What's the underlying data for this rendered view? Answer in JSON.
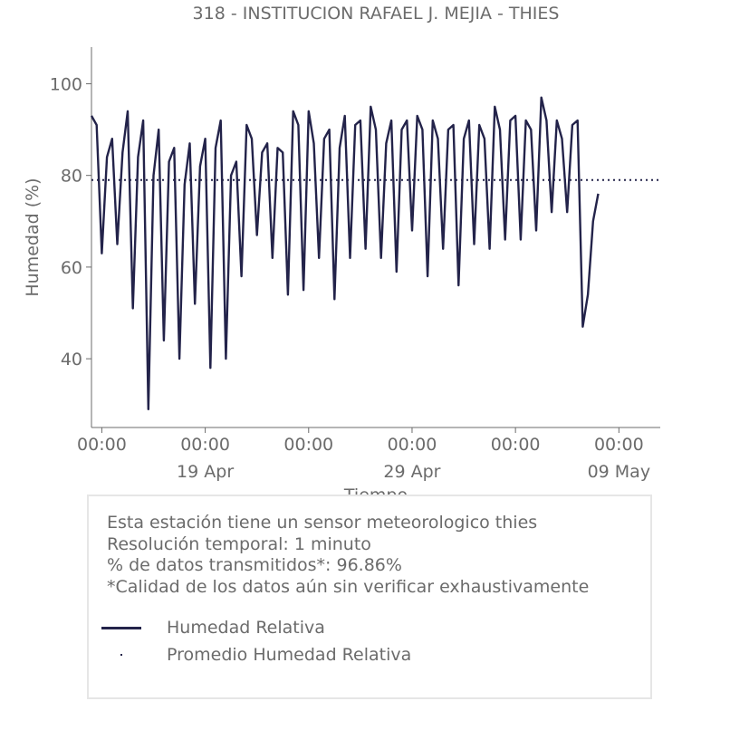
{
  "chart_data": {
    "type": "line",
    "title": "318 - INSTITUCION RAFAEL J. MEJIA - THIES",
    "xlabel": "Tiempo",
    "ylabel": "Humedad (%)",
    "x_range": [
      "2024-04-13 12:00",
      "2024-05-11 00:00"
    ],
    "ylim": [
      25,
      108
    ],
    "y_ticks": [
      40,
      60,
      80,
      100
    ],
    "x_ticks": [
      {
        "time": "2024-04-14 00:00",
        "label": "00:00",
        "date_label": ""
      },
      {
        "time": "2024-04-19 00:00",
        "label": "00:00",
        "date_label": "19 Apr"
      },
      {
        "time": "2024-04-24 00:00",
        "label": "00:00",
        "date_label": ""
      },
      {
        "time": "2024-04-29 00:00",
        "label": "00:00",
        "date_label": "29 Apr"
      },
      {
        "time": "2024-05-04 00:00",
        "label": "00:00",
        "date_label": ""
      },
      {
        "time": "2024-05-09 00:00",
        "label": "00:00",
        "date_label": "09 May"
      }
    ],
    "grid": false,
    "series": [
      {
        "name": "Humedad Relativa",
        "color": "#23234a",
        "style": "solid",
        "points": [
          [
            "2024-04-13 12:00",
            93
          ],
          [
            "2024-04-13 18:00",
            91
          ],
          [
            "2024-04-14 00:00",
            63
          ],
          [
            "2024-04-14 06:00",
            84
          ],
          [
            "2024-04-14 12:00",
            88
          ],
          [
            "2024-04-14 18:00",
            65
          ],
          [
            "2024-04-15 00:00",
            85
          ],
          [
            "2024-04-15 06:00",
            94
          ],
          [
            "2024-04-15 12:00",
            51
          ],
          [
            "2024-04-15 18:00",
            84
          ],
          [
            "2024-04-16 00:00",
            92
          ],
          [
            "2024-04-16 06:00",
            29
          ],
          [
            "2024-04-16 12:00",
            80
          ],
          [
            "2024-04-16 18:00",
            90
          ],
          [
            "2024-04-17 00:00",
            44
          ],
          [
            "2024-04-17 06:00",
            83
          ],
          [
            "2024-04-17 12:00",
            86
          ],
          [
            "2024-04-17 18:00",
            40
          ],
          [
            "2024-04-18 00:00",
            78
          ],
          [
            "2024-04-18 06:00",
            87
          ],
          [
            "2024-04-18 12:00",
            52
          ],
          [
            "2024-04-18 18:00",
            82
          ],
          [
            "2024-04-19 00:00",
            88
          ],
          [
            "2024-04-19 06:00",
            38
          ],
          [
            "2024-04-19 12:00",
            86
          ],
          [
            "2024-04-19 18:00",
            92
          ],
          [
            "2024-04-20 00:00",
            40
          ],
          [
            "2024-04-20 06:00",
            80
          ],
          [
            "2024-04-20 12:00",
            83
          ],
          [
            "2024-04-20 18:00",
            58
          ],
          [
            "2024-04-21 00:00",
            91
          ],
          [
            "2024-04-21 06:00",
            88
          ],
          [
            "2024-04-21 12:00",
            67
          ],
          [
            "2024-04-21 18:00",
            85
          ],
          [
            "2024-04-22 00:00",
            87
          ],
          [
            "2024-04-22 06:00",
            62
          ],
          [
            "2024-04-22 12:00",
            86
          ],
          [
            "2024-04-22 18:00",
            85
          ],
          [
            "2024-04-23 00:00",
            54
          ],
          [
            "2024-04-23 06:00",
            94
          ],
          [
            "2024-04-23 12:00",
            91
          ],
          [
            "2024-04-23 18:00",
            55
          ],
          [
            "2024-04-24 00:00",
            94
          ],
          [
            "2024-04-24 06:00",
            87
          ],
          [
            "2024-04-24 12:00",
            62
          ],
          [
            "2024-04-24 18:00",
            88
          ],
          [
            "2024-04-25 00:00",
            90
          ],
          [
            "2024-04-25 06:00",
            53
          ],
          [
            "2024-04-25 12:00",
            86
          ],
          [
            "2024-04-25 18:00",
            93
          ],
          [
            "2024-04-26 00:00",
            62
          ],
          [
            "2024-04-26 06:00",
            91
          ],
          [
            "2024-04-26 12:00",
            92
          ],
          [
            "2024-04-26 18:00",
            64
          ],
          [
            "2024-04-27 00:00",
            95
          ],
          [
            "2024-04-27 06:00",
            90
          ],
          [
            "2024-04-27 12:00",
            62
          ],
          [
            "2024-04-27 18:00",
            87
          ],
          [
            "2024-04-28 00:00",
            92
          ],
          [
            "2024-04-28 06:00",
            59
          ],
          [
            "2024-04-28 12:00",
            90
          ],
          [
            "2024-04-28 18:00",
            92
          ],
          [
            "2024-04-29 00:00",
            68
          ],
          [
            "2024-04-29 06:00",
            93
          ],
          [
            "2024-04-29 12:00",
            90
          ],
          [
            "2024-04-29 18:00",
            58
          ],
          [
            "2024-04-30 00:00",
            92
          ],
          [
            "2024-04-30 06:00",
            88
          ],
          [
            "2024-04-30 12:00",
            64
          ],
          [
            "2024-04-30 18:00",
            90
          ],
          [
            "2024-05-01 00:00",
            91
          ],
          [
            "2024-05-01 06:00",
            56
          ],
          [
            "2024-05-01 12:00",
            88
          ],
          [
            "2024-05-01 18:00",
            92
          ],
          [
            "2024-05-02 00:00",
            65
          ],
          [
            "2024-05-02 06:00",
            91
          ],
          [
            "2024-05-02 12:00",
            88
          ],
          [
            "2024-05-02 18:00",
            64
          ],
          [
            "2024-05-03 00:00",
            95
          ],
          [
            "2024-05-03 06:00",
            90
          ],
          [
            "2024-05-03 12:00",
            66
          ],
          [
            "2024-05-03 18:00",
            92
          ],
          [
            "2024-05-04 00:00",
            93
          ],
          [
            "2024-05-04 06:00",
            66
          ],
          [
            "2024-05-04 12:00",
            92
          ],
          [
            "2024-05-04 18:00",
            90
          ],
          [
            "2024-05-05 00:00",
            68
          ],
          [
            "2024-05-05 06:00",
            97
          ],
          [
            "2024-05-05 12:00",
            92
          ],
          [
            "2024-05-05 18:00",
            72
          ],
          [
            "2024-05-06 00:00",
            92
          ],
          [
            "2024-05-06 06:00",
            88
          ],
          [
            "2024-05-06 12:00",
            72
          ],
          [
            "2024-05-06 18:00",
            91
          ],
          [
            "2024-05-07 00:00",
            92
          ],
          [
            "2024-05-07 06:00",
            47
          ],
          [
            "2024-05-07 12:00",
            54
          ],
          [
            "2024-05-07 18:00",
            70
          ],
          [
            "2024-05-08 00:00",
            76
          ]
        ]
      },
      {
        "name": "Promedio Humedad Relativa",
        "color": "#23234a",
        "style": "dotted",
        "value": 79
      }
    ]
  },
  "info": {
    "lines": [
      "Esta estación tiene un sensor meteorologico thies",
      "Resolución temporal: 1 minuto",
      "% de datos transmitidos*: 96.86%",
      "*Calidad de los datos aún sin verificar exhaustivamente"
    ]
  },
  "legend": {
    "items": [
      {
        "label": "Humedad Relativa",
        "style": "solid"
      },
      {
        "label": "Promedio Humedad Relativa",
        "style": "dotted"
      }
    ]
  }
}
